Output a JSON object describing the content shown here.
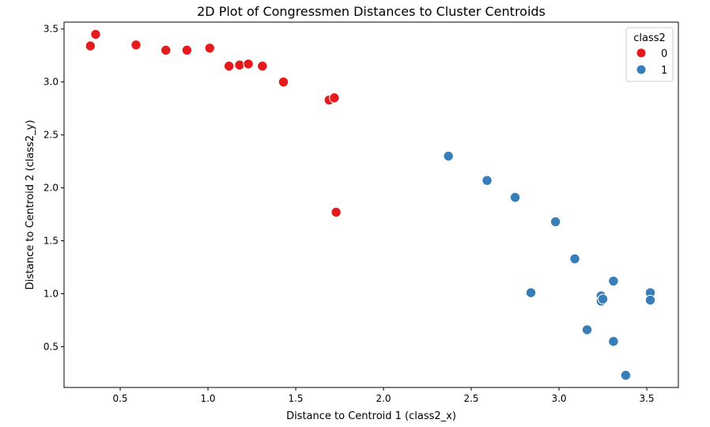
{
  "chart_data": {
    "type": "scatter",
    "title": "2D Plot of Congressmen Distances to Cluster Centroids",
    "xlabel": "Distance to Centroid 1 (class2_x)",
    "ylabel": "Distance to Centroid 2 (class2_y)",
    "xlim": [
      0.18,
      3.68
    ],
    "ylim": [
      0.115,
      3.565
    ],
    "xticks": [
      "0.5",
      "1.0",
      "1.5",
      "2.0",
      "2.5",
      "3.0",
      "3.5"
    ],
    "yticks": [
      "0.5",
      "1.0",
      "1.5",
      "2.0",
      "2.5",
      "3.0",
      "3.5"
    ],
    "grid": false,
    "legend": {
      "title": "class2",
      "position": "top-right",
      "entries": [
        {
          "label": "0",
          "color": "#e41a1c"
        },
        {
          "label": "1",
          "color": "#377eb8"
        }
      ]
    },
    "series": [
      {
        "name": "0",
        "color": "#e41a1c",
        "points": [
          [
            0.36,
            3.45
          ],
          [
            0.33,
            3.34
          ],
          [
            0.59,
            3.35
          ],
          [
            0.76,
            3.3
          ],
          [
            0.88,
            3.3
          ],
          [
            1.01,
            3.32
          ],
          [
            1.12,
            3.15
          ],
          [
            1.18,
            3.16
          ],
          [
            1.23,
            3.17
          ],
          [
            1.31,
            3.15
          ],
          [
            1.43,
            3.0
          ],
          [
            1.69,
            2.83
          ],
          [
            1.72,
            2.85
          ],
          [
            1.73,
            1.77
          ]
        ]
      },
      {
        "name": "1",
        "color": "#377eb8",
        "points": [
          [
            2.37,
            2.3
          ],
          [
            2.59,
            2.07
          ],
          [
            2.75,
            1.91
          ],
          [
            2.98,
            1.68
          ],
          [
            3.09,
            1.33
          ],
          [
            2.84,
            1.01
          ],
          [
            3.31,
            1.12
          ],
          [
            3.24,
            0.98
          ],
          [
            3.24,
            0.93
          ],
          [
            3.25,
            0.95
          ],
          [
            3.52,
            1.01
          ],
          [
            3.52,
            0.94
          ],
          [
            3.16,
            0.66
          ],
          [
            3.31,
            0.55
          ],
          [
            3.38,
            0.23
          ]
        ]
      }
    ]
  }
}
